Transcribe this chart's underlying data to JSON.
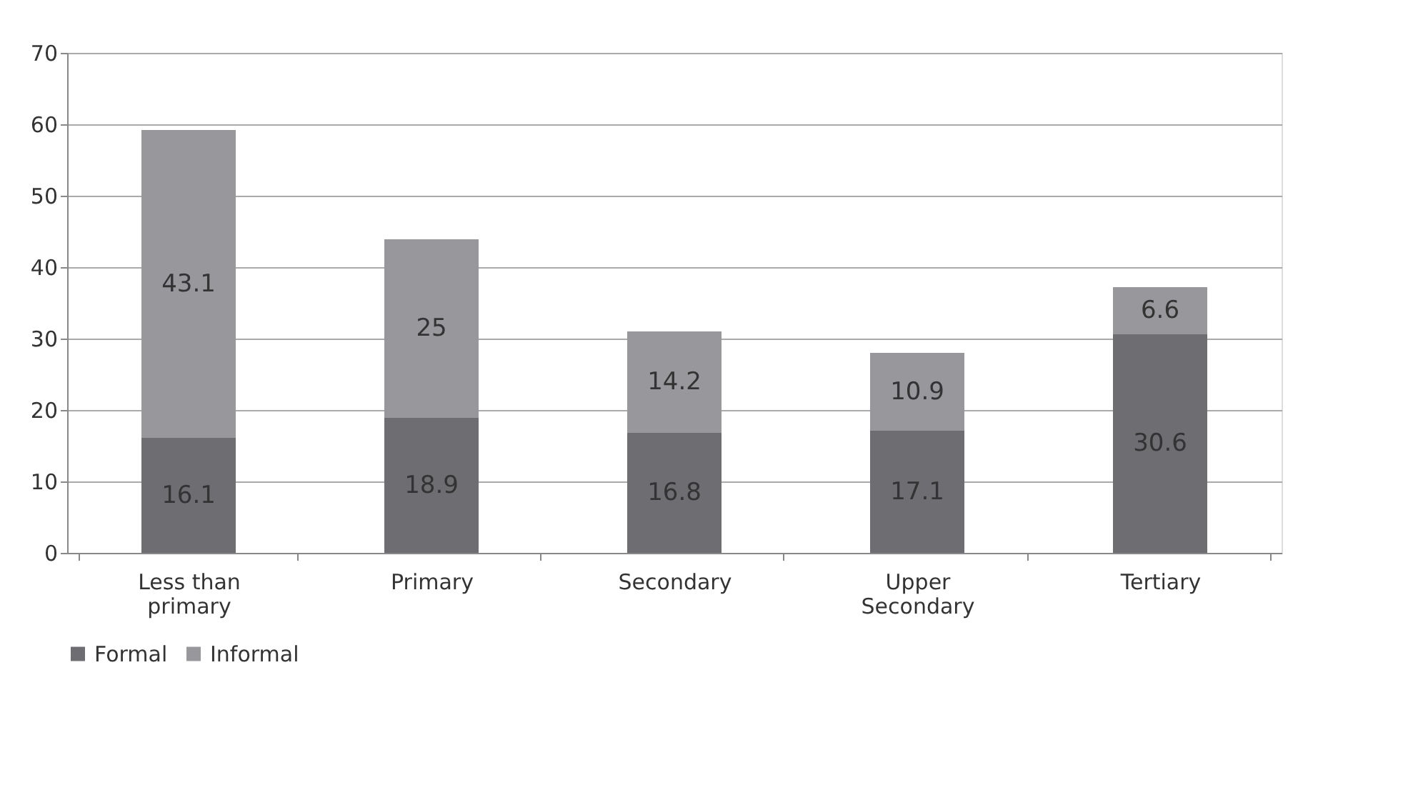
{
  "chart_data": {
    "type": "bar",
    "stacked": true,
    "categories": [
      "Less than\nprimary",
      "Primary",
      "Secondary",
      "Upper\nSecondary",
      "Tertiary"
    ],
    "series": [
      {
        "name": "Formal",
        "color": "#6e6e72",
        "values": [
          16.1,
          18.9,
          16.8,
          17.1,
          30.6
        ]
      },
      {
        "name": "Informal",
        "color": "#98989c",
        "values": [
          43.1,
          25,
          14.2,
          10.9,
          6.6
        ]
      }
    ],
    "ylim": [
      0,
      70
    ],
    "yticks": [
      0,
      10,
      20,
      30,
      40,
      50,
      60,
      70
    ],
    "grid": "y",
    "legend": "bottom",
    "data_labels": true
  }
}
